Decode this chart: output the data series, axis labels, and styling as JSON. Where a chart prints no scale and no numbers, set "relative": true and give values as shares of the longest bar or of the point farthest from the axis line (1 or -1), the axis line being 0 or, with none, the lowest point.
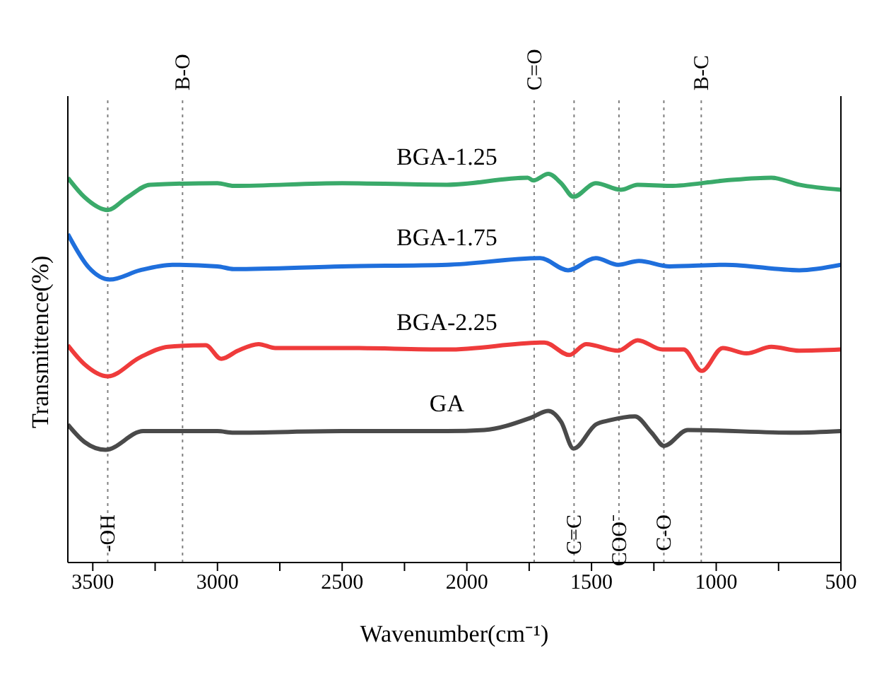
{
  "chart_data": {
    "type": "line",
    "relative": true,
    "xlabel": "Wavenumber(cm⁻¹)",
    "ylabel": "Transmittence(%)",
    "xlim": [
      3600,
      500
    ],
    "xticks": [
      3500,
      {
        "value": 3250,
        "label": null
      },
      3000,
      {
        "value": 2750,
        "label": null
      },
      2500,
      {
        "value": 2250,
        "label": null
      },
      2000,
      {
        "value": 1750,
        "label": null
      },
      1500,
      {
        "value": 1250,
        "label": null
      },
      1000,
      {
        "value": 750,
        "label": null
      },
      500
    ],
    "legend": false,
    "grid": false,
    "marker": "none",
    "line_style": "solid",
    "tick_labels": "x",
    "series": [
      {
        "name": "BGA-1.25",
        "color": "#3aaa6a",
        "x": [
          3600,
          3533,
          3440,
          3365,
          3270,
          3000,
          2935,
          2500,
          2080,
          1756,
          1734,
          1673,
          1622,
          1572,
          1483,
          1382,
          1315,
          1187,
          963,
          779,
          667,
          500
        ],
        "values": [
          0.99,
          0.94,
          0.907,
          0.938,
          0.972,
          0.976,
          0.969,
          0.976,
          0.972,
          0.99,
          0.983,
          1.0,
          0.976,
          0.941,
          0.976,
          0.959,
          0.972,
          0.969,
          0.983,
          0.99,
          0.972,
          0.959
        ]
      },
      {
        "name": "BGA-1.75",
        "color": "#1f6fdc",
        "x": [
          3600,
          3516,
          3432,
          3310,
          3181,
          3000,
          2935,
          2500,
          2080,
          1706,
          1594,
          1483,
          1393,
          1310,
          1187,
          963,
          667,
          500
        ],
        "values": [
          0.845,
          0.759,
          0.728,
          0.752,
          0.766,
          0.762,
          0.755,
          0.762,
          0.766,
          0.783,
          0.752,
          0.783,
          0.766,
          0.776,
          0.762,
          0.766,
          0.752,
          0.766
        ]
      },
      {
        "name": "BGA-2.25",
        "color": "#ef3b3b",
        "x": [
          3600,
          3533,
          3440,
          3310,
          3198,
          3047,
          2985,
          2918,
          2835,
          2768,
          2500,
          2080,
          1689,
          1589,
          1522,
          1393,
          1315,
          1215,
          1131,
          1058,
          974,
          879,
          779,
          667,
          500
        ],
        "values": [
          0.559,
          0.51,
          0.479,
          0.528,
          0.555,
          0.559,
          0.524,
          0.545,
          0.562,
          0.552,
          0.552,
          0.548,
          0.566,
          0.534,
          0.562,
          0.545,
          0.572,
          0.548,
          0.548,
          0.493,
          0.552,
          0.538,
          0.555,
          0.545,
          0.548
        ]
      },
      {
        "name": "GA",
        "color": "#4a4a4a",
        "x": [
          3600,
          3533,
          3449,
          3298,
          3000,
          2935,
          2500,
          2080,
          1930,
          1745,
          1673,
          1622,
          1572,
          1483,
          1427,
          1326,
          1259,
          1209,
          1114,
          684,
          500
        ],
        "values": [
          0.355,
          0.31,
          0.29,
          0.338,
          0.338,
          0.334,
          0.338,
          0.338,
          0.341,
          0.372,
          0.39,
          0.362,
          0.293,
          0.355,
          0.366,
          0.376,
          0.334,
          0.3,
          0.341,
          0.334,
          0.338
        ]
      }
    ],
    "ref_lines": [
      {
        "axis": "x",
        "value": 3140,
        "label": "B-O",
        "color": "#808080",
        "line_style": "dotted"
      },
      {
        "axis": "x",
        "value": 1730,
        "label": "C=O",
        "color": "#808080",
        "line_style": "dotted"
      },
      {
        "axis": "x",
        "value": 1060,
        "label": "B-C",
        "color": "#808080",
        "line_style": "dotted"
      },
      {
        "axis": "x",
        "value": 3440,
        "label": "-OH",
        "color": "#808080",
        "line_style": "dotted"
      },
      {
        "axis": "x",
        "value": 1570,
        "label": "C=C",
        "color": "#808080",
        "line_style": "dotted"
      },
      {
        "axis": "x",
        "value": 1390,
        "label": "COO⁻",
        "color": "#808080",
        "line_style": "dotted"
      },
      {
        "axis": "x",
        "value": 1210,
        "label": "C-O",
        "color": "#808080",
        "line_style": "dotted"
      }
    ]
  }
}
